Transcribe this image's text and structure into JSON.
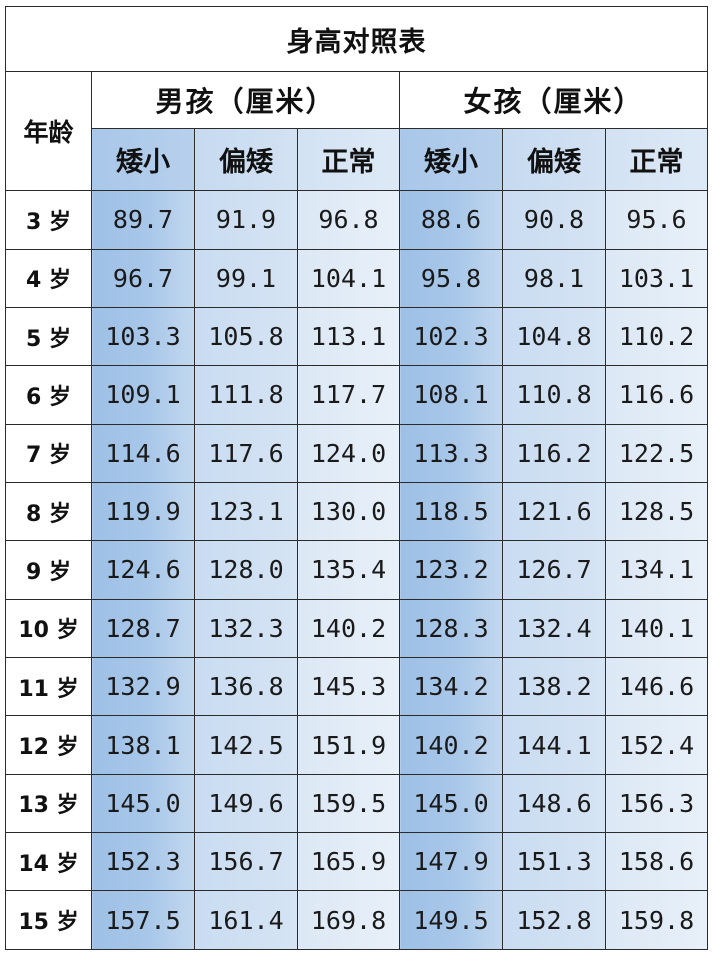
{
  "title": "身高对照表",
  "age_header": "年龄",
  "groups": [
    "男孩（厘米）",
    "女孩（厘米）"
  ],
  "subheaders": [
    "矮小",
    "偏矮",
    "正常",
    "矮小",
    "偏矮",
    "正常"
  ],
  "rows": [
    {
      "age": "3 岁",
      "values": [
        "89.7",
        "91.9",
        "96.8",
        "88.6",
        "90.8",
        "95.6"
      ]
    },
    {
      "age": "4 岁",
      "values": [
        "96.7",
        "99.1",
        "104.1",
        "95.8",
        "98.1",
        "103.1"
      ]
    },
    {
      "age": "5 岁",
      "values": [
        "103.3",
        "105.8",
        "113.1",
        "102.3",
        "104.8",
        "110.2"
      ]
    },
    {
      "age": "6 岁",
      "values": [
        "109.1",
        "111.8",
        "117.7",
        "108.1",
        "110.8",
        "116.6"
      ]
    },
    {
      "age": "7 岁",
      "values": [
        "114.6",
        "117.6",
        "124.0",
        "113.3",
        "116.2",
        "122.5"
      ]
    },
    {
      "age": "8 岁",
      "values": [
        "119.9",
        "123.1",
        "130.0",
        "118.5",
        "121.6",
        "128.5"
      ]
    },
    {
      "age": "9 岁",
      "values": [
        "124.6",
        "128.0",
        "135.4",
        "123.2",
        "126.7",
        "134.1"
      ]
    },
    {
      "age": "10 岁",
      "values": [
        "128.7",
        "132.3",
        "140.2",
        "128.3",
        "132.4",
        "140.1"
      ]
    },
    {
      "age": "11 岁",
      "values": [
        "132.9",
        "136.8",
        "145.3",
        "134.2",
        "138.2",
        "146.6"
      ]
    },
    {
      "age": "12 岁",
      "values": [
        "138.1",
        "142.5",
        "151.9",
        "140.2",
        "144.1",
        "152.4"
      ]
    },
    {
      "age": "13 岁",
      "values": [
        "145.0",
        "149.6",
        "159.5",
        "145.0",
        "148.6",
        "156.3"
      ]
    },
    {
      "age": "14 岁",
      "values": [
        "152.3",
        "156.7",
        "165.9",
        "147.9",
        "151.3",
        "158.6"
      ]
    },
    {
      "age": "15 岁",
      "values": [
        "157.5",
        "161.4",
        "169.8",
        "149.5",
        "152.8",
        "159.8"
      ]
    }
  ],
  "colors": {
    "short": "#a8c7e9",
    "lean": "#d6e4f4",
    "normal": "#e8f0f9",
    "border": "#2b2b2b"
  }
}
